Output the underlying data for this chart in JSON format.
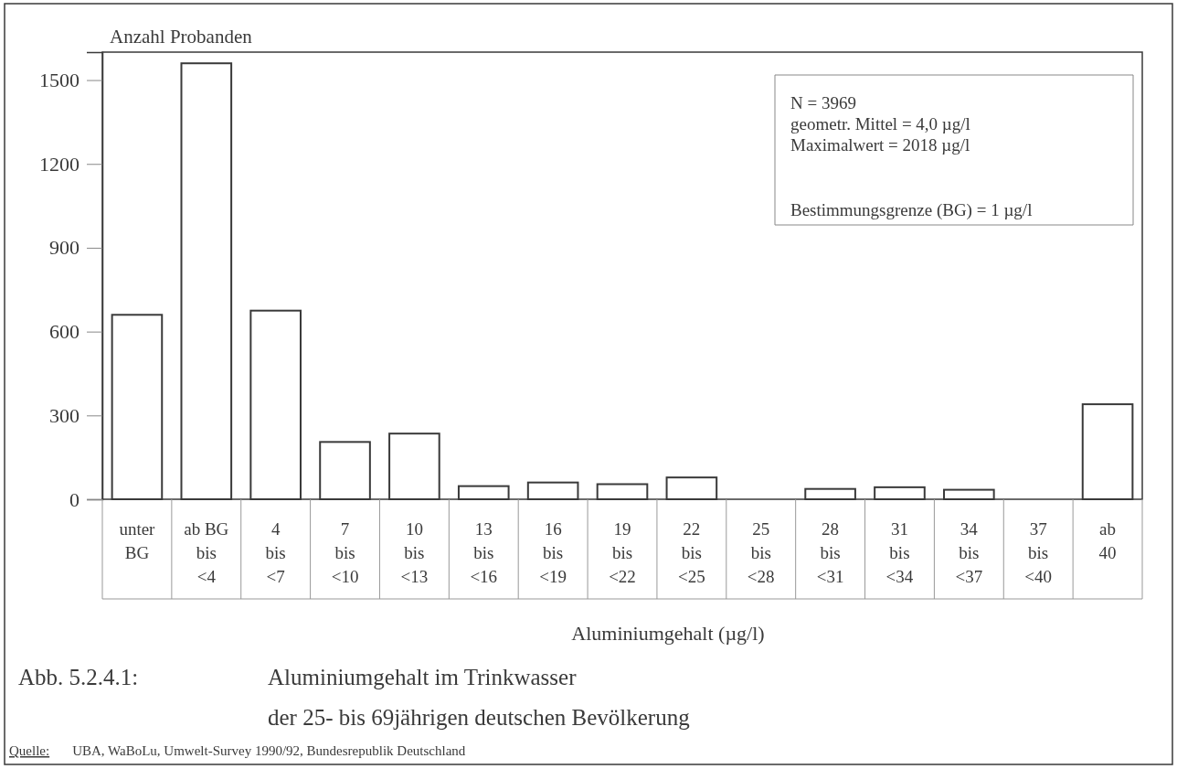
{
  "chart_data": {
    "type": "bar",
    "title": "Aluminiumgehalt im Trinkwasser\nder 25- bis 69jährigen deutschen Bevölkerung",
    "xlabel": "Aluminiumgehalt (µg/l)",
    "ylabel": "Anzahl Probanden",
    "categories": [
      "unter\nBG",
      "ab BG\nbis\n<4",
      "4\nbis\n<7",
      "7\nbis\n<10",
      "10\nbis\n<13",
      "13\nbis\n<16",
      "16\nbis\n<19",
      "19\nbis\n<22",
      "22\nbis\n<25",
      "25\nbis\n<28",
      "28\nbis\n<31",
      "31\nbis\n<34",
      "34\nbis\n<37",
      "37\nbis\n<40",
      "ab\n40"
    ],
    "values": [
      660,
      1560,
      675,
      205,
      235,
      47,
      60,
      54,
      78,
      0,
      37,
      43,
      34,
      0,
      340
    ],
    "color": "#ffffff",
    "ylim": [
      0,
      1600
    ],
    "yticks": [
      0,
      300,
      600,
      900,
      1200,
      1500
    ],
    "grid": false,
    "annotations": [
      "N = 3969",
      "geometr. Mittel = 4,0 µg/l",
      "Maximalwert = 2018 µg/l",
      "Bestimmungsgrenze (BG) = 1 µg/l",
      "Abb. 5.2.4.1:",
      "Quelle: UBA, WaBoLu, Umwelt-Survey 1990/92, Bundesrepublik Deutschland"
    ]
  }
}
